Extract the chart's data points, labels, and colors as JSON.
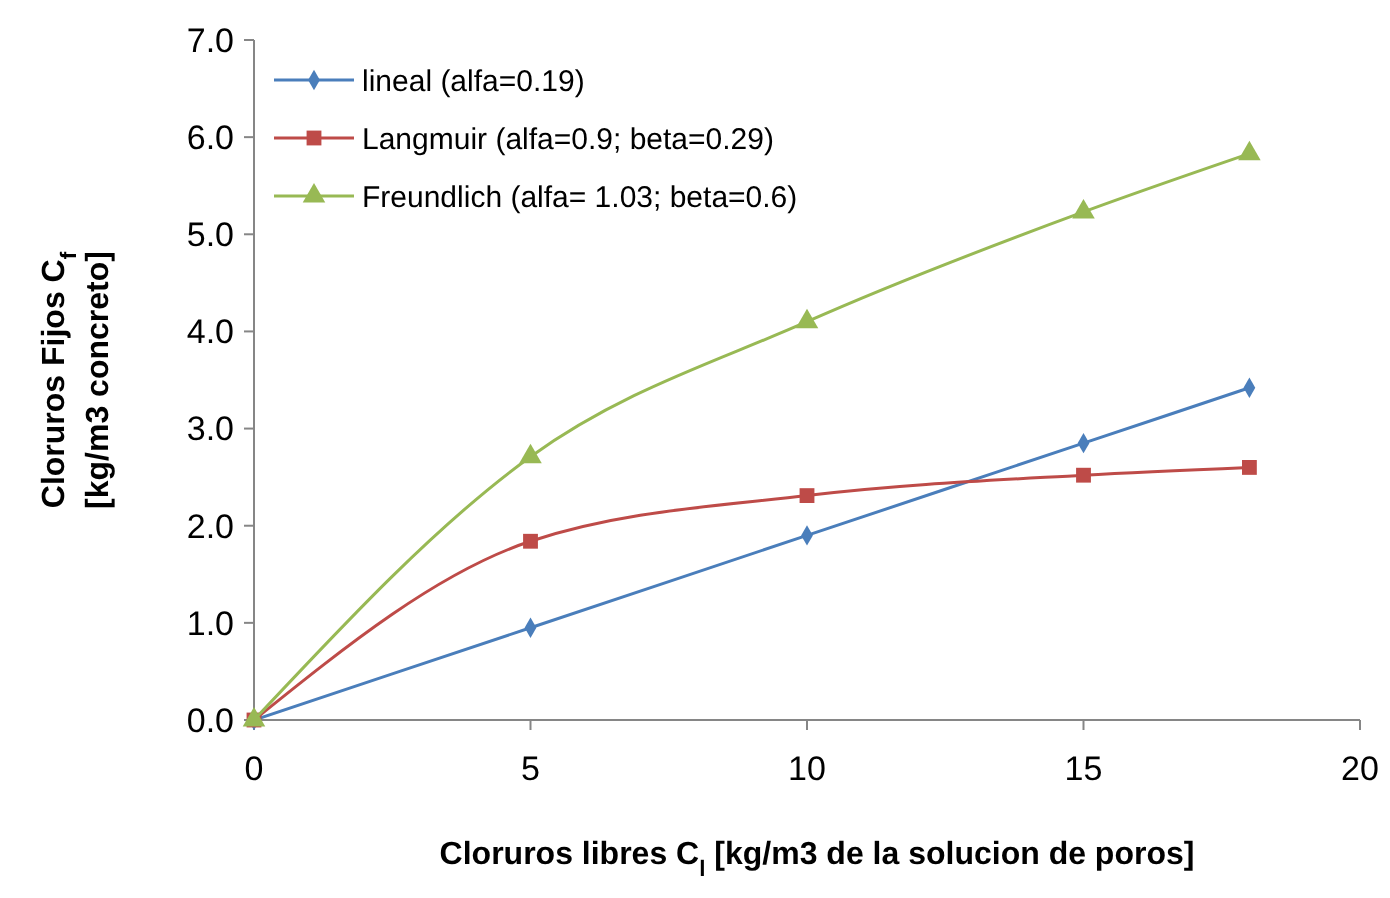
{
  "chart_data": {
    "type": "line",
    "xlabel": "Cloruros libres C$_{l}$ [kg/m3 de la solucion de poros]",
    "ylabel": "Cloruros Fijos C$_{f}$ [kg/m3 concreto]",
    "x": [
      0,
      5,
      10,
      15,
      18
    ],
    "series": [
      {
        "name": "lineal (alfa=0.19)",
        "color": "#4a7ebb",
        "marker": "diamond",
        "values": [
          0,
          0.95,
          1.9,
          2.85,
          3.42
        ]
      },
      {
        "name": "Langmuir (alfa=0.9; beta=0.29)",
        "color": "#be4b48",
        "marker": "square",
        "values": [
          0,
          1.84,
          2.31,
          2.52,
          2.6
        ]
      },
      {
        "name": "Freundlich (alfa= 1.03; beta=0.6)",
        "color": "#98b954",
        "marker": "triangle",
        "values": [
          0,
          2.71,
          4.1,
          5.23,
          5.83
        ]
      }
    ],
    "xlim": [
      0,
      20
    ],
    "xticks": [
      0,
      5,
      10,
      15,
      20
    ],
    "ylim": [
      0,
      7
    ],
    "yticks": [
      {
        "value": 0,
        "label": "0.0"
      },
      {
        "value": 1,
        "label": "1.0"
      },
      {
        "value": 2,
        "label": "2.0"
      },
      {
        "value": 3,
        "label": "3.0"
      },
      {
        "value": 4,
        "label": "4.0"
      },
      {
        "value": 5,
        "label": "5.0"
      },
      {
        "value": 6,
        "label": "6.0"
      },
      {
        "value": 7,
        "label": "7.0"
      }
    ],
    "grid": false,
    "legend": "top left",
    "line_style": "solid"
  }
}
